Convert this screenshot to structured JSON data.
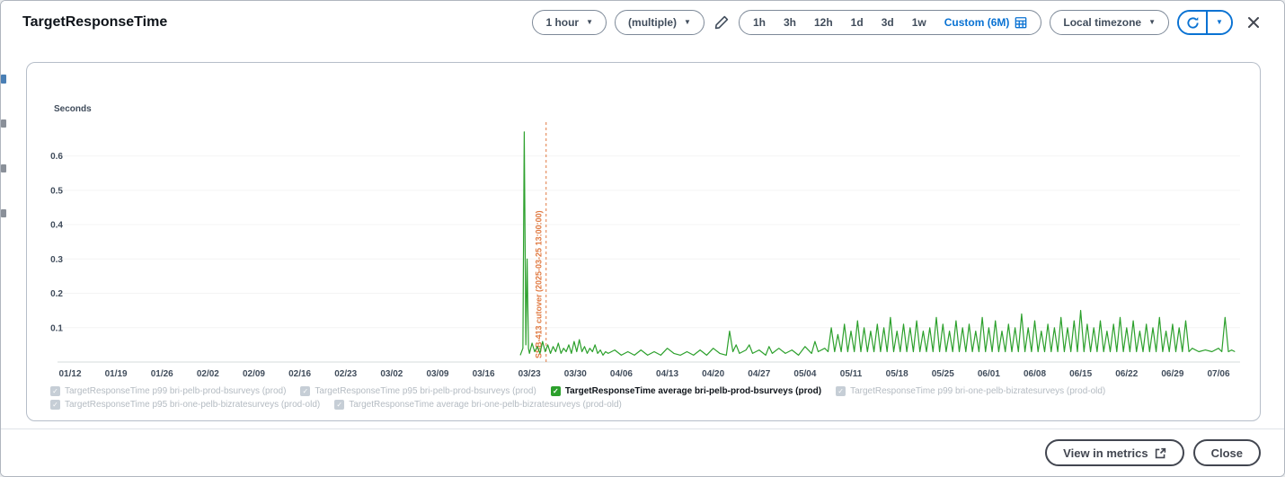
{
  "header": {
    "title": "TargetResponseTime",
    "period_dropdown": "1 hour",
    "stat_dropdown": "(multiple)",
    "range_tabs": [
      "1h",
      "3h",
      "12h",
      "1d",
      "3d",
      "1w"
    ],
    "custom_range": "Custom (6M)",
    "timezone_dropdown": "Local timezone"
  },
  "footer": {
    "view_in_metrics": "View in metrics",
    "close": "Close"
  },
  "legend": {
    "items": [
      {
        "label": "TargetResponseTime p99 bri-pelb-prod-bsurveys (prod)",
        "enabled": false,
        "row": 1
      },
      {
        "label": "TargetResponseTime p95 bri-pelb-prod-bsurveys (prod)",
        "enabled": false,
        "row": 1
      },
      {
        "label": "TargetResponseTime average bri-pelb-prod-bsurveys (prod)",
        "enabled": true,
        "row": 1
      },
      {
        "label": "TargetResponseTime p99 bri-one-pelb-bizratesurveys (prod-old)",
        "enabled": false,
        "row": 1
      },
      {
        "label": "TargetResponseTime p95 bri-one-pelb-bizratesurveys (prod-old)",
        "enabled": false,
        "row": 2
      },
      {
        "label": "TargetResponseTime average bri-one-pelb-bizratesurveys (prod-old)",
        "enabled": false,
        "row": 2
      }
    ]
  },
  "chart_data": {
    "type": "line",
    "title": "TargetResponseTime",
    "ylabel": "Seconds",
    "ylim": [
      0,
      0.68
    ],
    "y_ticks": [
      0.1,
      0.2,
      0.3,
      0.4,
      0.5,
      0.6
    ],
    "x_domain_days": [
      0,
      178
    ],
    "x_tick_days": [
      0,
      7,
      14,
      21,
      28,
      35,
      42,
      49,
      56,
      63,
      70,
      77,
      84,
      91,
      98,
      105,
      112,
      119,
      126,
      133,
      140,
      147,
      154,
      161,
      168,
      175
    ],
    "x_tick_labels": [
      "01/12",
      "01/19",
      "01/26",
      "02/02",
      "02/09",
      "02/16",
      "02/23",
      "03/02",
      "03/09",
      "03/16",
      "03/23",
      "03/30",
      "04/06",
      "04/13",
      "04/20",
      "04/27",
      "05/04",
      "05/11",
      "05/18",
      "05/25",
      "06/01",
      "06/08",
      "06/15",
      "06/22",
      "06/29",
      "07/06"
    ],
    "grid": true,
    "legend_position": "bottom",
    "annotation": {
      "day": 72.54,
      "label": "SSB-413 cutover (2025-03-25 13:00:00)",
      "color": "#e07941"
    },
    "series": [
      {
        "name": "TargetResponseTime average bri-pelb-prod-bsurveys (prod)",
        "color": "#2ca02c",
        "points": [
          [
            68.6,
            0.02
          ],
          [
            69,
            0.04
          ],
          [
            69.2,
            0.67
          ],
          [
            69.45,
            0.05
          ],
          [
            69.65,
            0.3
          ],
          [
            69.85,
            0.04
          ],
          [
            70,
            0.025
          ],
          [
            70.4,
            0.055
          ],
          [
            70.8,
            0.03
          ],
          [
            71.2,
            0.045
          ],
          [
            71.6,
            0.025
          ],
          [
            72,
            0.06
          ],
          [
            72.4,
            0.03
          ],
          [
            72.8,
            0.05
          ],
          [
            73.2,
            0.025
          ],
          [
            73.6,
            0.045
          ],
          [
            74,
            0.03
          ],
          [
            74.4,
            0.055
          ],
          [
            74.8,
            0.025
          ],
          [
            75.2,
            0.04
          ],
          [
            75.6,
            0.03
          ],
          [
            76,
            0.05
          ],
          [
            76.4,
            0.025
          ],
          [
            76.8,
            0.06
          ],
          [
            77.2,
            0.03
          ],
          [
            77.6,
            0.065
          ],
          [
            78,
            0.03
          ],
          [
            78.4,
            0.045
          ],
          [
            78.8,
            0.025
          ],
          [
            79.2,
            0.04
          ],
          [
            79.6,
            0.03
          ],
          [
            80,
            0.05
          ],
          [
            80.4,
            0.025
          ],
          [
            80.8,
            0.035
          ],
          [
            81.2,
            0.02
          ],
          [
            81.6,
            0.03
          ],
          [
            82,
            0.025
          ],
          [
            83,
            0.035
          ],
          [
            84,
            0.02
          ],
          [
            85,
            0.03
          ],
          [
            86,
            0.02
          ],
          [
            87,
            0.035
          ],
          [
            88,
            0.02
          ],
          [
            89,
            0.03
          ],
          [
            90,
            0.02
          ],
          [
            91,
            0.04
          ],
          [
            92,
            0.025
          ],
          [
            93,
            0.02
          ],
          [
            94,
            0.03
          ],
          [
            95,
            0.02
          ],
          [
            96,
            0.035
          ],
          [
            97,
            0.02
          ],
          [
            98,
            0.04
          ],
          [
            99,
            0.025
          ],
          [
            100,
            0.02
          ],
          [
            100.5,
            0.09
          ],
          [
            101,
            0.03
          ],
          [
            101.5,
            0.05
          ],
          [
            102,
            0.025
          ],
          [
            103,
            0.035
          ],
          [
            103.5,
            0.05
          ],
          [
            104,
            0.025
          ],
          [
            105,
            0.035
          ],
          [
            106,
            0.02
          ],
          [
            106.5,
            0.045
          ],
          [
            107,
            0.025
          ],
          [
            108,
            0.04
          ],
          [
            109,
            0.025
          ],
          [
            110,
            0.035
          ],
          [
            111,
            0.02
          ],
          [
            112,
            0.045
          ],
          [
            113,
            0.025
          ],
          [
            113.5,
            0.06
          ],
          [
            114,
            0.03
          ],
          [
            115,
            0.04
          ],
          [
            115.5,
            0.03
          ],
          [
            116,
            0.1
          ],
          [
            116.5,
            0.03
          ],
          [
            117,
            0.08
          ],
          [
            117.5,
            0.03
          ],
          [
            118,
            0.11
          ],
          [
            118.5,
            0.03
          ],
          [
            119,
            0.09
          ],
          [
            119.5,
            0.03
          ],
          [
            120,
            0.12
          ],
          [
            120.5,
            0.03
          ],
          [
            121,
            0.1
          ],
          [
            121.5,
            0.03
          ],
          [
            122,
            0.09
          ],
          [
            122.5,
            0.03
          ],
          [
            123,
            0.11
          ],
          [
            123.5,
            0.03
          ],
          [
            124,
            0.1
          ],
          [
            124.5,
            0.03
          ],
          [
            125,
            0.13
          ],
          [
            125.5,
            0.03
          ],
          [
            126,
            0.09
          ],
          [
            126.5,
            0.03
          ],
          [
            127,
            0.11
          ],
          [
            127.5,
            0.03
          ],
          [
            128,
            0.1
          ],
          [
            128.5,
            0.03
          ],
          [
            129,
            0.12
          ],
          [
            129.5,
            0.03
          ],
          [
            130,
            0.09
          ],
          [
            130.5,
            0.03
          ],
          [
            131,
            0.1
          ],
          [
            131.5,
            0.03
          ],
          [
            132,
            0.13
          ],
          [
            132.5,
            0.03
          ],
          [
            133,
            0.11
          ],
          [
            133.5,
            0.03
          ],
          [
            134,
            0.09
          ],
          [
            134.5,
            0.03
          ],
          [
            135,
            0.12
          ],
          [
            135.5,
            0.03
          ],
          [
            136,
            0.1
          ],
          [
            136.5,
            0.03
          ],
          [
            137,
            0.11
          ],
          [
            137.5,
            0.03
          ],
          [
            138,
            0.09
          ],
          [
            138.5,
            0.03
          ],
          [
            139,
            0.13
          ],
          [
            139.5,
            0.03
          ],
          [
            140,
            0.1
          ],
          [
            140.5,
            0.03
          ],
          [
            141,
            0.12
          ],
          [
            141.5,
            0.03
          ],
          [
            142,
            0.09
          ],
          [
            142.5,
            0.03
          ],
          [
            143,
            0.11
          ],
          [
            143.5,
            0.03
          ],
          [
            144,
            0.1
          ],
          [
            144.5,
            0.03
          ],
          [
            145,
            0.14
          ],
          [
            145.5,
            0.03
          ],
          [
            146,
            0.1
          ],
          [
            146.5,
            0.03
          ],
          [
            147,
            0.12
          ],
          [
            147.5,
            0.03
          ],
          [
            148,
            0.09
          ],
          [
            148.5,
            0.03
          ],
          [
            149,
            0.11
          ],
          [
            149.5,
            0.03
          ],
          [
            150,
            0.1
          ],
          [
            150.5,
            0.03
          ],
          [
            151,
            0.13
          ],
          [
            151.5,
            0.03
          ],
          [
            152,
            0.1
          ],
          [
            152.5,
            0.03
          ],
          [
            153,
            0.12
          ],
          [
            153.5,
            0.03
          ],
          [
            154,
            0.15
          ],
          [
            154.5,
            0.03
          ],
          [
            155,
            0.11
          ],
          [
            155.5,
            0.03
          ],
          [
            156,
            0.1
          ],
          [
            156.5,
            0.03
          ],
          [
            157,
            0.12
          ],
          [
            157.5,
            0.03
          ],
          [
            158,
            0.09
          ],
          [
            158.5,
            0.03
          ],
          [
            159,
            0.11
          ],
          [
            159.5,
            0.03
          ],
          [
            160,
            0.13
          ],
          [
            160.5,
            0.03
          ],
          [
            161,
            0.1
          ],
          [
            161.5,
            0.03
          ],
          [
            162,
            0.12
          ],
          [
            162.5,
            0.03
          ],
          [
            163,
            0.09
          ],
          [
            163.5,
            0.03
          ],
          [
            164,
            0.11
          ],
          [
            164.5,
            0.03
          ],
          [
            165,
            0.1
          ],
          [
            165.5,
            0.03
          ],
          [
            166,
            0.13
          ],
          [
            166.5,
            0.03
          ],
          [
            167,
            0.09
          ],
          [
            167.5,
            0.03
          ],
          [
            168,
            0.11
          ],
          [
            168.5,
            0.03
          ],
          [
            169,
            0.1
          ],
          [
            169.5,
            0.03
          ],
          [
            170,
            0.12
          ],
          [
            170.5,
            0.03
          ],
          [
            171,
            0.04
          ],
          [
            172,
            0.03
          ],
          [
            173,
            0.035
          ],
          [
            174,
            0.03
          ],
          [
            175,
            0.04
          ],
          [
            175.5,
            0.03
          ],
          [
            176,
            0.13
          ],
          [
            176.5,
            0.03
          ],
          [
            177,
            0.035
          ],
          [
            177.5,
            0.03
          ]
        ]
      }
    ]
  }
}
